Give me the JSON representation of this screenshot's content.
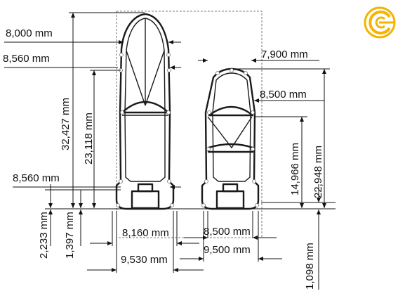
{
  "logo": {
    "icon": "c-logo-icon",
    "ring_color": "#f5b400",
    "inner_color": "#f5b400"
  },
  "dimensions": {
    "d_8000": "8,000 mm",
    "d_8560_top": "8,560 mm",
    "d_32427": "32,427 mm",
    "d_23118": "23,118 mm",
    "d_8560_bottom": "8,560 mm",
    "d_2233": "2,233 mm",
    "d_1397": "1,397 mm",
    "d_8160": "8,160 mm",
    "d_9530": "9,530 mm",
    "d_7900": "7,900 mm",
    "d_8500_top": "8,500 mm",
    "d_14966": "14,966 mm",
    "d_22948": "22,948 mm",
    "d_8500_bottom": "8,500 mm",
    "d_9500": "9,500 mm",
    "d_1098": "1,098 mm"
  }
}
